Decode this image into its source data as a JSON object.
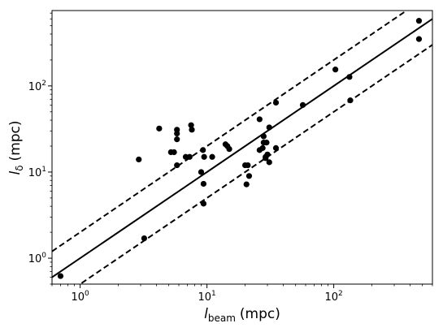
{
  "chart_data": {
    "type": "scatter",
    "xscale": "log",
    "yscale": "log",
    "xlim": [
      0.6,
      600
    ],
    "ylim": [
      0.5,
      750
    ],
    "xlabel": {
      "main": "l",
      "sub": "beam",
      "unit": "(mpc)"
    },
    "ylabel": {
      "main": "l",
      "sub": "δ",
      "unit": "(mpc)"
    },
    "grid": false,
    "x_ticks": [
      {
        "value": 1,
        "base": "10",
        "exp": "0"
      },
      {
        "value": 10,
        "base": "10",
        "exp": "1"
      },
      {
        "value": 100,
        "base": "10",
        "exp": "2"
      }
    ],
    "y_ticks": [
      {
        "value": 1,
        "base": "10",
        "exp": "0"
      },
      {
        "value": 10,
        "base": "10",
        "exp": "1"
      },
      {
        "value": 100,
        "base": "10",
        "exp": "2"
      }
    ],
    "lines": [
      {
        "style": "solid",
        "slope": 1,
        "factor": 1.0
      },
      {
        "style": "dashed",
        "slope": 1,
        "factor": 2.0
      },
      {
        "style": "dashed",
        "slope": 1,
        "factor": 0.5
      }
    ],
    "points": [
      [
        0.7,
        0.62
      ],
      [
        3.2,
        1.7
      ],
      [
        2.9,
        14
      ],
      [
        4.2,
        32
      ],
      [
        5.2,
        17
      ],
      [
        5.5,
        17
      ],
      [
        5.8,
        31
      ],
      [
        5.8,
        28
      ],
      [
        5.8,
        24
      ],
      [
        5.8,
        12
      ],
      [
        6.8,
        15
      ],
      [
        7.3,
        15
      ],
      [
        7.5,
        35
      ],
      [
        7.6,
        31
      ],
      [
        9.0,
        10
      ],
      [
        9.3,
        18
      ],
      [
        9.5,
        15
      ],
      [
        9.4,
        7.3
      ],
      [
        9.4,
        4.3
      ],
      [
        11,
        15
      ],
      [
        14,
        21
      ],
      [
        14.5,
        20
      ],
      [
        15,
        18.5
      ],
      [
        20,
        12
      ],
      [
        20.5,
        7.2
      ],
      [
        21,
        12
      ],
      [
        21.5,
        9
      ],
      [
        26,
        41
      ],
      [
        26,
        18
      ],
      [
        27.5,
        19
      ],
      [
        28,
        26
      ],
      [
        28,
        22
      ],
      [
        29,
        15
      ],
      [
        29,
        14.5
      ],
      [
        29.5,
        22
      ],
      [
        30,
        16
      ],
      [
        31,
        33
      ],
      [
        31,
        13
      ],
      [
        35,
        64
      ],
      [
        35,
        19
      ],
      [
        57,
        60
      ],
      [
        103,
        155
      ],
      [
        133,
        127
      ],
      [
        135,
        68
      ],
      [
        470,
        570
      ],
      [
        470,
        350
      ]
    ]
  }
}
